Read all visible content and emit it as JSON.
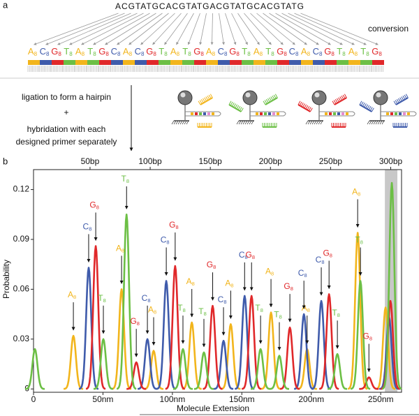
{
  "panel_a": {
    "label": "a",
    "sequence": "ACGTATGCACGTATGACGTATGCACGTATG",
    "conversion_label": "conversion",
    "converted": [
      "A",
      "C",
      "G",
      "T",
      "A",
      "T",
      "G",
      "C",
      "A",
      "C",
      "G",
      "T",
      "A",
      "T",
      "G",
      "A",
      "C",
      "G",
      "T",
      "A",
      "T",
      "G",
      "C",
      "A",
      "C",
      "G",
      "T",
      "A",
      "T",
      "G"
    ],
    "subscript": "8",
    "colors": {
      "A": "#f2b51c",
      "C": "#3f5bab",
      "G": "#e0282a",
      "T": "#6cbf45"
    },
    "step1": "ligation to form a hairpin",
    "plus": "+",
    "step2_lines": [
      "hybridation with each",
      "designed primer separately"
    ],
    "primer_colors": [
      "#f2b51c",
      "#6cbf45",
      "#e0282a",
      "#3f5bab"
    ]
  },
  "chart_data": {
    "type": "peaks",
    "panel_label": "b",
    "ylabel": "Probability",
    "xlabel": "Molecule Extension",
    "xlim": [
      0,
      265
    ],
    "xticks": [
      0,
      {
        "value": 50,
        "label": "50nm"
      },
      {
        "value": 100,
        "label": "100nm"
      },
      {
        "value": 150,
        "label": "150nm"
      },
      {
        "value": 200,
        "label": "200nm"
      },
      {
        "value": 250,
        "label": "250nm"
      }
    ],
    "x2lim": [
      3,
      309
    ],
    "x2ticks": [
      {
        "value": 50,
        "label": "50bp"
      },
      {
        "value": 100,
        "label": "100bp"
      },
      {
        "value": 150,
        "label": "150bp"
      },
      {
        "value": 200,
        "label": "200bp"
      },
      {
        "value": 250,
        "label": "250bp"
      },
      {
        "value": 300,
        "label": "300bp"
      }
    ],
    "ylim": [
      -0.002,
      0.132
    ],
    "yticks": [
      0,
      0.03,
      0.06,
      0.09,
      0.12
    ],
    "shaded_xrange": [
      253,
      262
    ],
    "subscript": "8",
    "series": [
      {
        "name": "A",
        "color": "#f2b51c",
        "x": [
          28.7,
          63.4,
          86.5,
          114,
          142,
          171,
          197,
          233.4,
          253.5
        ],
        "values": [
          0.032,
          0.06,
          0.023,
          0.04,
          0.039,
          0.046,
          0.024,
          0.094,
          0.049
        ],
        "labeled": [
          true,
          true,
          true,
          true,
          true,
          true,
          true,
          true,
          false
        ]
      },
      {
        "name": "C",
        "color": "#3f5bab",
        "x": [
          39.7,
          82,
          95.6,
          136.8,
          152,
          194.7,
          207.2,
          256
        ],
        "values": [
          0.073,
          0.03,
          0.065,
          0.029,
          0.056,
          0.045,
          0.053,
          0.043
        ],
        "labeled": [
          true,
          true,
          true,
          true,
          true,
          true,
          true,
          false
        ]
      },
      {
        "name": "G",
        "color": "#e0282a",
        "x": [
          44.8,
          74,
          102,
          129,
          157,
          184.6,
          212.8,
          241.5,
          257
        ],
        "values": [
          0.086,
          0.016,
          0.074,
          0.05,
          0.056,
          0.037,
          0.057,
          0.007,
          0.053
        ],
        "labeled": [
          true,
          true,
          true,
          true,
          true,
          true,
          true,
          true,
          false
        ]
      },
      {
        "name": "T",
        "color": "#6cbf45",
        "x": [
          1,
          50.3,
          67,
          107.6,
          122.7,
          163.5,
          177,
          218.8,
          235.4,
          258
        ],
        "values": [
          0.024,
          0.03,
          0.105,
          0.024,
          0.022,
          0.024,
          0.02,
          0.021,
          0.065,
          0.124
        ],
        "labeled": [
          false,
          true,
          true,
          true,
          true,
          true,
          true,
          true,
          true,
          false
        ]
      }
    ]
  }
}
